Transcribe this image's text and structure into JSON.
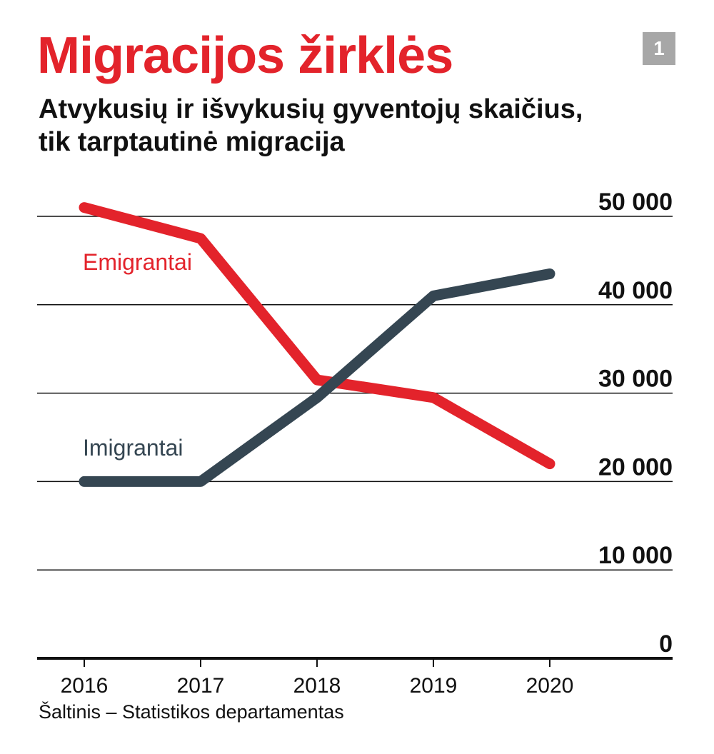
{
  "header": {
    "title": "Migracijos žirklės",
    "badge": "1",
    "subtitle_line1": "Atvykusių ir išvykusių gyventojų skaičius,",
    "subtitle_line2": "tik tarptautinė migracija"
  },
  "footer": {
    "source": "Šaltinis – Statistikos departamentas"
  },
  "colors": {
    "title": "#e3232b",
    "badge_bg": "#a7a7a7",
    "emigrants": "#e3232b",
    "immigrants": "#354652",
    "gridline": "#111111",
    "text": "#111111"
  },
  "chart_data": {
    "type": "line",
    "title": "Atvykusių ir išvykusių gyventojų skaičius, tik tarptautinė migracija",
    "x": [
      "2016",
      "2017",
      "2018",
      "2019",
      "2020"
    ],
    "ylim": [
      0,
      50000
    ],
    "yticks": [
      0,
      10000,
      20000,
      30000,
      40000,
      50000
    ],
    "ytick_labels": [
      "0",
      "10 000",
      "20 000",
      "30 000",
      "40 000",
      "50 000"
    ],
    "y_axis_position": "right",
    "grid": true,
    "legend": "inline labels next to lines",
    "series": [
      {
        "name": "Emigrantai",
        "values": [
          51000,
          47500,
          31500,
          29500,
          22000
        ]
      },
      {
        "name": "Imigrantai",
        "values": [
          20000,
          20000,
          29500,
          41000,
          43500
        ]
      }
    ]
  }
}
